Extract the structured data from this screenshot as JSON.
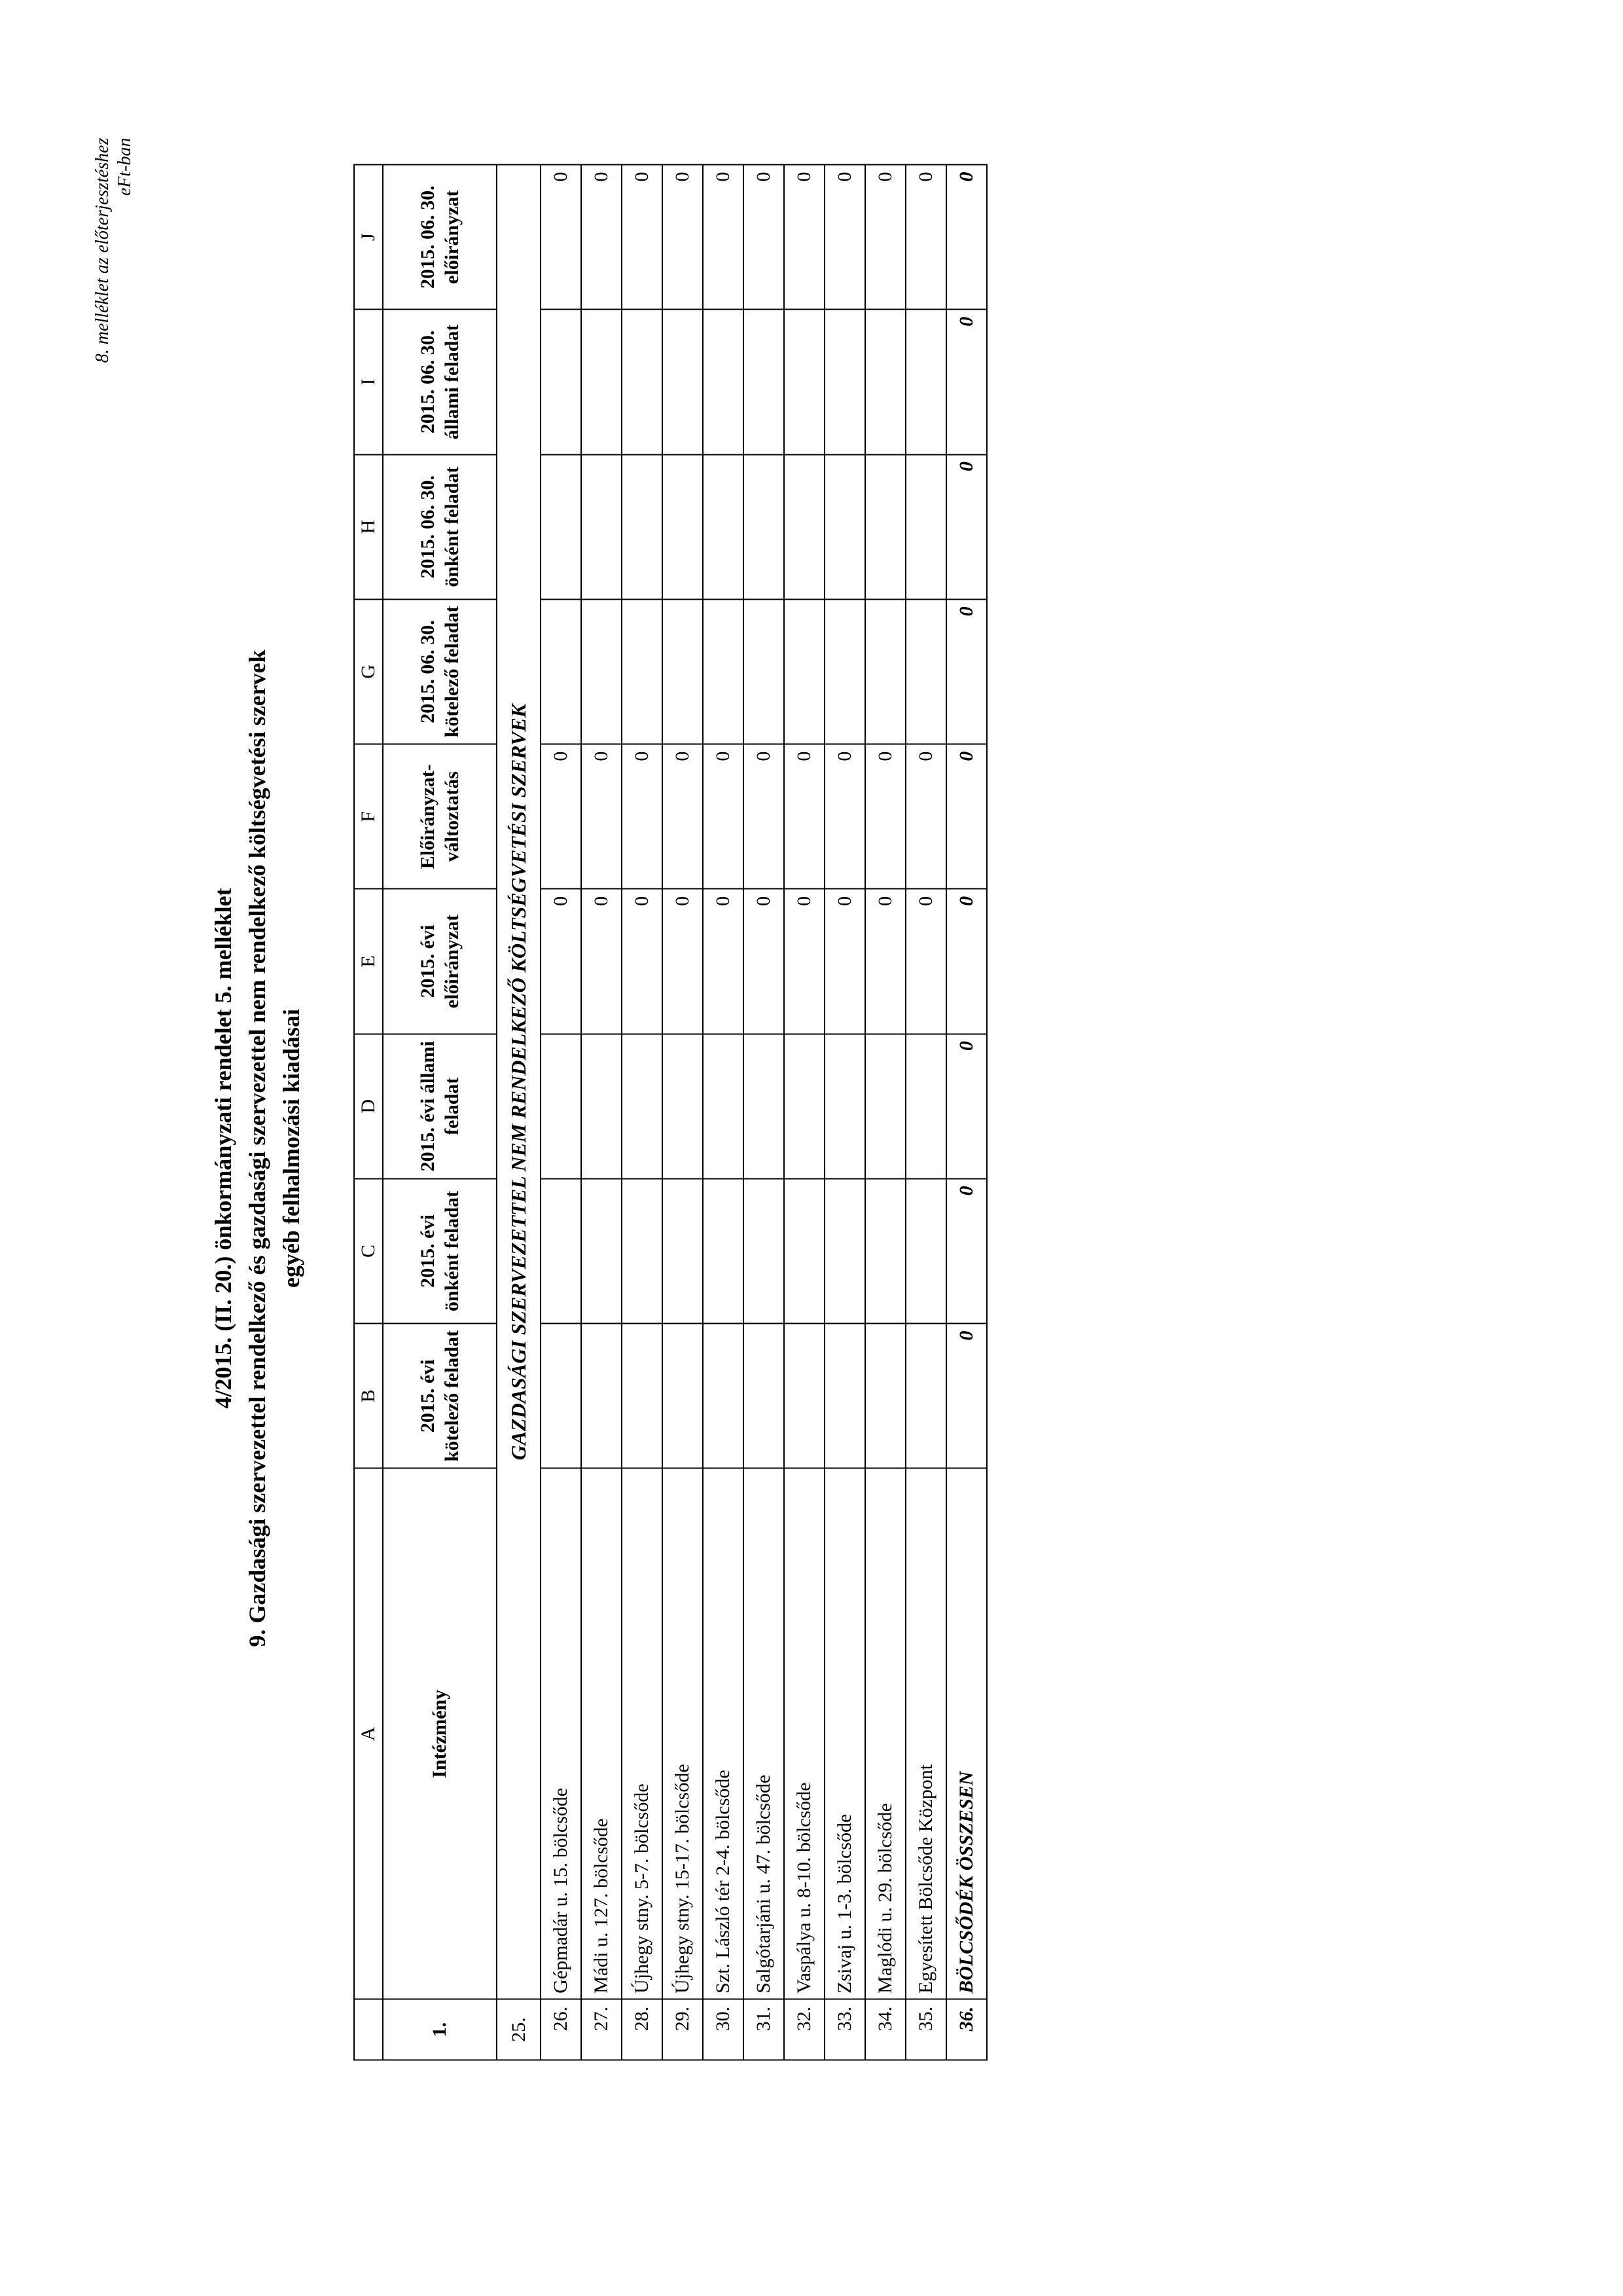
{
  "annotation": {
    "line1": "8. melléklet az előterjesztéshez",
    "line2": "eFt-ban"
  },
  "titles": {
    "line1": "4/2015. (II. 20.) önkormányzati rendelet 5. melléklet",
    "line2": "9. Gazdasági szervezettel rendelkező és gazdasági szervezettel nem rendelkező költségvetési szervek",
    "line3": "egyéb felhalmozási kiadásai"
  },
  "columns_letters": [
    "A",
    "B",
    "C",
    "D",
    "E",
    "F",
    "G",
    "H",
    "I",
    "J"
  ],
  "headers": {
    "row_idx": "1.",
    "name": "Intézmény",
    "b": "2015. évi kötelező feladat",
    "c": "2015. évi önként feladat",
    "d": "2015. évi állami feladat",
    "e": "2015. évi előirányzat",
    "f": "Előirányzat-változtatás",
    "g": "2015. 06. 30. kötelező feladat",
    "h": "2015. 06. 30. önként feladat",
    "i": "2015. 06. 30. állami feladat",
    "j": "2015. 06. 30. előirányzat"
  },
  "section": {
    "idx": "25.",
    "label": "GAZDASÁGI SZERVEZETTEL NEM RENDELKEZŐ KÖLTSÉGVETÉSI SZERVEK"
  },
  "rows": [
    {
      "idx": "26.",
      "name": "Gépmadár u. 15. bölcsőde",
      "e": "0",
      "f": "0",
      "j": "0"
    },
    {
      "idx": "27.",
      "name": "Mádi u. 127. bölcsőde",
      "e": "0",
      "f": "0",
      "j": "0"
    },
    {
      "idx": "28.",
      "name": "Újhegy stny. 5-7. bölcsőde",
      "e": "0",
      "f": "0",
      "j": "0"
    },
    {
      "idx": "29.",
      "name": "Újhegy stny. 15-17. bölcsőde",
      "e": "0",
      "f": "0",
      "j": "0"
    },
    {
      "idx": "30.",
      "name": "Szt. László tér 2-4. bölcsőde",
      "e": "0",
      "f": "0",
      "j": "0"
    },
    {
      "idx": "31.",
      "name": "Salgótarjáni u. 47. bölcsőde",
      "e": "0",
      "f": "0",
      "j": "0"
    },
    {
      "idx": "32.",
      "name": "Vaspálya u. 8-10. bölcsőde",
      "e": "0",
      "f": "0",
      "j": "0"
    },
    {
      "idx": "33.",
      "name": "Zsivaj u. 1-3. bölcsőde",
      "e": "0",
      "f": "0",
      "j": "0"
    },
    {
      "idx": "34.",
      "name": "Maglódi u. 29. bölcsőde",
      "e": "0",
      "f": "0",
      "j": "0"
    },
    {
      "idx": "35.",
      "name": "Egyesített Bölcsőde Központ",
      "e": "0",
      "f": "0",
      "j": "0"
    }
  ],
  "total": {
    "idx": "36.",
    "name": "BÖLCSŐDÉK ÖSSZESEN",
    "b": "0",
    "c": "0",
    "d": "0",
    "e": "0",
    "f": "0",
    "g": "0",
    "h": "0",
    "i": "0",
    "j": "0"
  }
}
